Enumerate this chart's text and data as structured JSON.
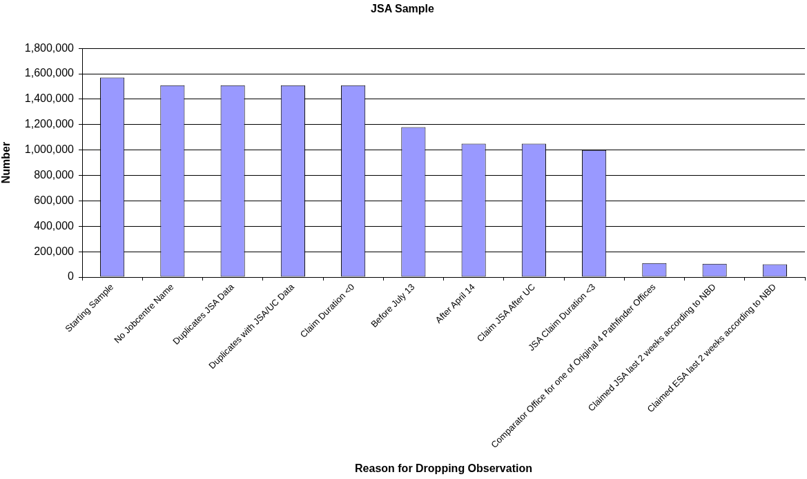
{
  "chart_data": {
    "type": "bar",
    "title": "JSA Sample",
    "xlabel": "Reason for Dropping Observation",
    "ylabel": "Number",
    "categories": [
      "Starting Sample",
      "No Jobcentre Name",
      "Duplicates JSA Data",
      "Duplicates with JSA/UC Data",
      "Claim Duration <0",
      "Before July 13",
      "After April 14",
      "Claim JSA After UC",
      "JSA Claim Duration <3",
      "Comparator Office for one of Original 4 Pathfinder Offices",
      "Claimed JSA last 2 weeks according to NBD",
      "Claimed ESA last 2 weeks according to NBD"
    ],
    "values": [
      1570000,
      1510000,
      1510000,
      1510000,
      1510000,
      1180000,
      1050000,
      1050000,
      1000000,
      110000,
      105000,
      100000
    ],
    "color": "#9999ff",
    "ylim": [
      0,
      1800000
    ],
    "yticks": [
      0,
      {
        "value": 200000,
        "label": "200,000"
      },
      {
        "value": 400000,
        "label": "400,000"
      },
      {
        "value": 600000,
        "label": "600,000"
      },
      {
        "value": 800000,
        "label": "800,000"
      },
      {
        "value": 1000000,
        "label": "1,000,000"
      },
      {
        "value": 1200000,
        "label": "1,200,000"
      },
      {
        "value": 1400000,
        "label": "1,400,000"
      },
      {
        "value": 1600000,
        "label": "1,600,000"
      },
      {
        "value": 1800000,
        "label": "1,800,000"
      }
    ],
    "grid": "y"
  }
}
